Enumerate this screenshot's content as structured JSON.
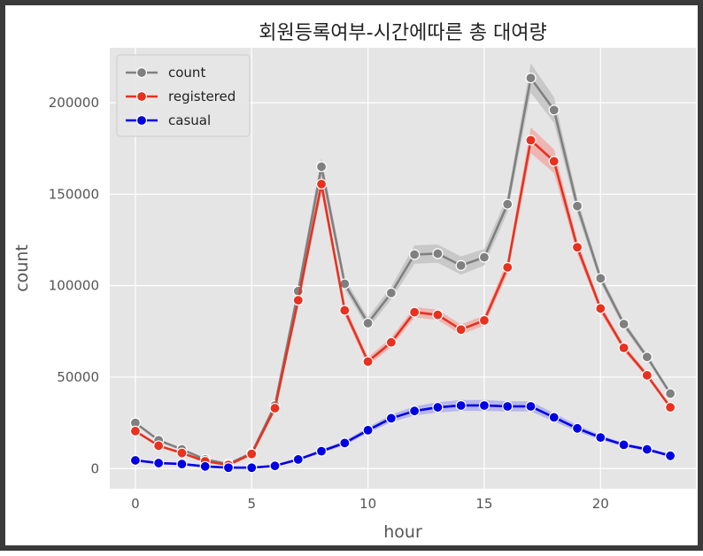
{
  "chart_data": {
    "type": "line",
    "title": "회원등록여부-시간에따른 총 대여량",
    "xlabel": "hour",
    "ylabel": "count",
    "xlim": [
      -1.1,
      24.1
    ],
    "ylim": [
      -11000,
      230000
    ],
    "x_ticks": [
      0,
      5,
      10,
      15,
      20
    ],
    "y_ticks": [
      0,
      50000,
      100000,
      150000,
      200000
    ],
    "grid": true,
    "legend_position": "top-left",
    "x": [
      0,
      1,
      2,
      3,
      4,
      5,
      6,
      7,
      8,
      9,
      10,
      11,
      12,
      13,
      14,
      15,
      16,
      17,
      18,
      19,
      20,
      21,
      22,
      23
    ],
    "series": [
      {
        "name": "count",
        "color": "#808080",
        "band_color": "#bdbdbd",
        "values": [
          25000,
          15500,
          10500,
          5000,
          2500,
          8500,
          34500,
          97000,
          165000,
          101000,
          79500,
          96000,
          117000,
          117500,
          111000,
          115500,
          144500,
          213500,
          196000,
          143500,
          104000,
          79000,
          61000,
          41000
        ],
        "band": [
          800,
          600,
          500,
          400,
          300,
          500,
          1500,
          3500,
          5000,
          3000,
          3000,
          3500,
          5000,
          5000,
          5000,
          4500,
          4500,
          8000,
          7000,
          4000,
          2500,
          2000,
          1500,
          1000
        ]
      },
      {
        "name": "registered",
        "color": "#e8311f",
        "band_color": "#f0a6a0",
        "values": [
          20500,
          12500,
          8500,
          4000,
          2000,
          8000,
          33000,
          92000,
          155500,
          86500,
          58500,
          69000,
          85500,
          84000,
          76000,
          81000,
          110000,
          179500,
          168000,
          121000,
          87500,
          66000,
          51000,
          33500
        ],
        "band": [
          700,
          500,
          400,
          300,
          250,
          400,
          1400,
          3200,
          4500,
          2600,
          2300,
          2600,
          2800,
          2800,
          2800,
          2800,
          3500,
          7000,
          6500,
          3500,
          2200,
          1800,
          1400,
          900
        ]
      },
      {
        "name": "casual",
        "color": "#0000e6",
        "band_color": "#a6a6ee",
        "values": [
          4500,
          3000,
          2500,
          1200,
          500,
          500,
          1500,
          5000,
          9500,
          14000,
          21000,
          27500,
          31500,
          33500,
          34500,
          34500,
          34000,
          34000,
          28000,
          22000,
          17000,
          13000,
          10500,
          7000
        ],
        "band": [
          400,
          300,
          300,
          200,
          150,
          150,
          250,
          600,
          900,
          1200,
          1500,
          2000,
          2500,
          2800,
          3000,
          3000,
          2800,
          2700,
          2200,
          1800,
          1300,
          1000,
          900,
          700
        ]
      }
    ]
  }
}
